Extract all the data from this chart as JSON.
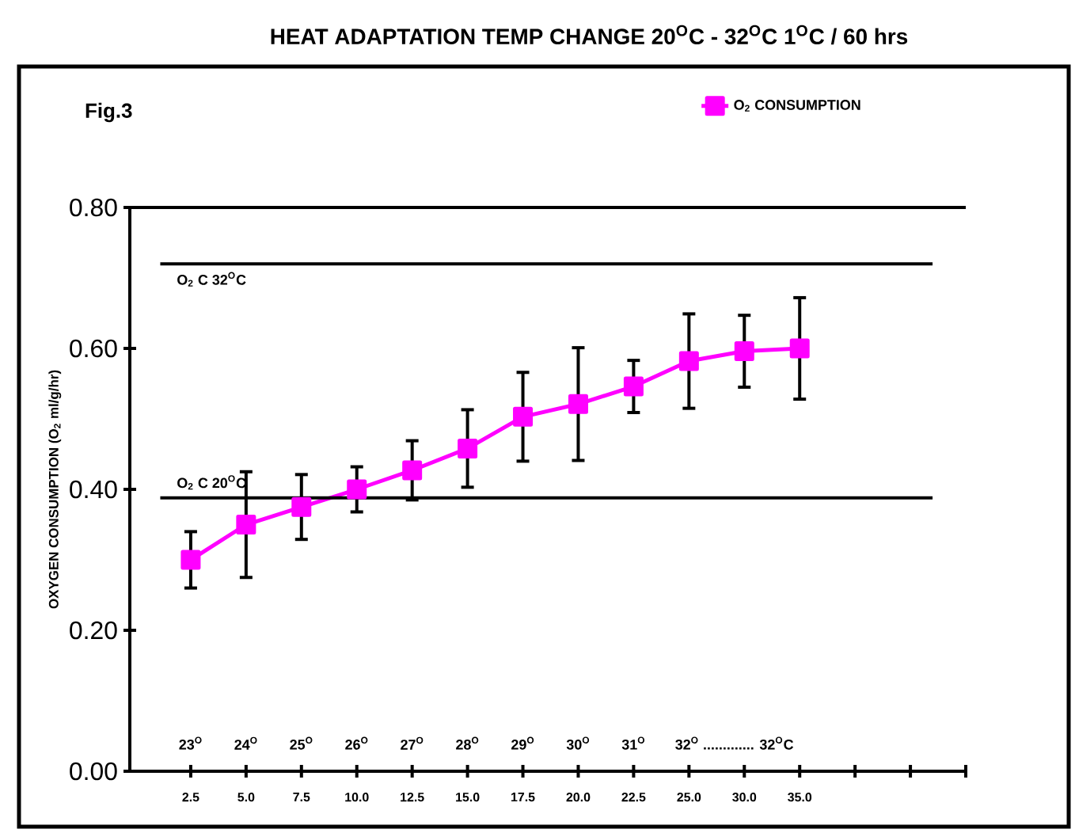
{
  "chart_data": {
    "type": "line",
    "title": "HEAT ADAPTATION TEMP CHANGE 20$^{O}$C - 32$^{O}$C 1$^{O}$C / 60 hrs",
    "ylabel": "OXYGEN CONSUMPTION (O$_{2}$ ml/g/hr)",
    "categories": [
      "2.5",
      "5.0",
      "7.5",
      "10.0",
      "12.5",
      "15.0",
      "17.5",
      "20.0",
      "22.5",
      "25.0",
      "30.0",
      "35.0",
      null,
      null,
      null
    ],
    "series": [
      {
        "name": "O$_{2}$ CONSUMPTION",
        "color": "#ff00ff",
        "values": [
          0.3,
          0.35,
          0.375,
          0.4,
          0.427,
          0.458,
          0.503,
          0.521,
          0.546,
          0.582,
          0.596,
          0.6,
          null,
          null,
          null
        ],
        "errors": [
          0.04,
          0.075,
          0.046,
          0.032,
          0.042,
          0.055,
          0.063,
          0.08,
          0.037,
          0.067,
          0.051,
          0.072,
          null,
          null,
          null
        ]
      }
    ],
    "ylim": [
      0,
      0.8
    ],
    "yticks": [
      {
        "value": 0,
        "label": "0.00"
      },
      {
        "value": 0.2,
        "label": "0.20"
      },
      {
        "value": 0.4,
        "label": "0.40"
      },
      {
        "value": 0.6,
        "label": "0.60"
      },
      {
        "value": 0.8,
        "label": "0.80"
      }
    ],
    "ref_lines": [
      {
        "axis": "y",
        "value": 0.72,
        "label": "O$_{2}$ C 32$^{O}$C",
        "color": "#000000"
      },
      {
        "axis": "y",
        "value": 0.388,
        "label": "O$_{2}$ C 20$^{O}$C",
        "color": "#000000"
      }
    ],
    "annotations": [
      "Fig.3",
      "23$^{O}$",
      "24$^{O}$",
      "25$^{O}$",
      "26$^{O}$",
      "27$^{O}$",
      "28$^{O}$",
      "29$^{O}$",
      "30$^{O}$",
      "31$^{O}$",
      "32$^{O}$ ............. 32$^{O}$C"
    ],
    "legend": "top right",
    "marker": "square",
    "line_style": "solid",
    "grid": false
  }
}
